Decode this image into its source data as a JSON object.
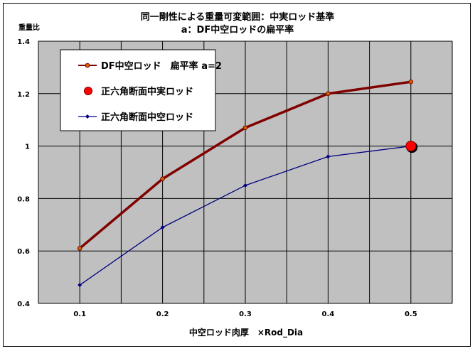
{
  "chart_data": {
    "type": "line",
    "title": "同一剛性による重量可変範囲：中実ロッド基準",
    "subtitle": "a：DF中空ロッドの扁平率",
    "xlabel": "中空ロッド肉厚　×Rod_Dia",
    "ylabel": "重量比",
    "xlim": [
      0.05,
      0.55
    ],
    "ylim": [
      0.4,
      1.4
    ],
    "x_ticks": [
      "0.1",
      "0.2",
      "0.3",
      "0.4",
      "0.5"
    ],
    "x_tick_values": [
      0.1,
      0.2,
      0.3,
      0.4,
      0.5
    ],
    "y_ticks": [
      "0.4",
      "0.6",
      "0.8",
      "1",
      "1.2",
      "1.4"
    ],
    "y_tick_values": [
      0.4,
      0.6,
      0.8,
      1.0,
      1.2,
      1.4
    ],
    "grid": true,
    "legend_position": "top-left",
    "plot_background": "#c0c0c0",
    "series": [
      {
        "name": "DF中空ロッド　扁平率 a=2",
        "color": "#800000",
        "marker": "circle",
        "x": [
          0.1,
          0.2,
          0.3,
          0.4,
          0.5
        ],
        "values": [
          0.61,
          0.875,
          1.07,
          1.2,
          1.245
        ]
      },
      {
        "name": "正六角断面中実ロッド",
        "color": "#ff0000",
        "marker": "big-circle",
        "x": [
          0.5
        ],
        "values": [
          1.0
        ]
      },
      {
        "name": "正六角断面中空ロッド",
        "color": "#000080",
        "marker": "diamond",
        "x": [
          0.1,
          0.2,
          0.3,
          0.4,
          0.5
        ],
        "values": [
          0.47,
          0.69,
          0.85,
          0.96,
          1.0
        ]
      }
    ]
  }
}
